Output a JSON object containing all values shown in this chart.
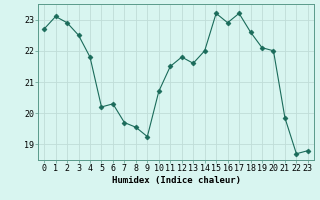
{
  "x": [
    0,
    1,
    2,
    3,
    4,
    5,
    6,
    7,
    8,
    9,
    10,
    11,
    12,
    13,
    14,
    15,
    16,
    17,
    18,
    19,
    20,
    21,
    22,
    23
  ],
  "y": [
    22.7,
    23.1,
    22.9,
    22.5,
    21.8,
    20.2,
    20.3,
    19.7,
    19.55,
    19.25,
    20.7,
    21.5,
    21.8,
    21.6,
    22.0,
    23.2,
    22.9,
    23.2,
    22.6,
    22.1,
    22.0,
    19.85,
    18.7,
    18.8
  ],
  "line_color": "#1a6b5a",
  "marker": "D",
  "marker_size": 2.5,
  "bg_color": "#d8f5f0",
  "grid_color": "#c0ddd8",
  "xlabel": "Humidex (Indice chaleur)",
  "ylim": [
    18.5,
    23.5
  ],
  "xlim": [
    -0.5,
    23.5
  ],
  "yticks": [
    19,
    20,
    21,
    22,
    23
  ],
  "xticks": [
    0,
    1,
    2,
    3,
    4,
    5,
    6,
    7,
    8,
    9,
    10,
    11,
    12,
    13,
    14,
    15,
    16,
    17,
    18,
    19,
    20,
    21,
    22,
    23
  ],
  "label_fontsize": 6.5,
  "tick_fontsize": 6.0
}
